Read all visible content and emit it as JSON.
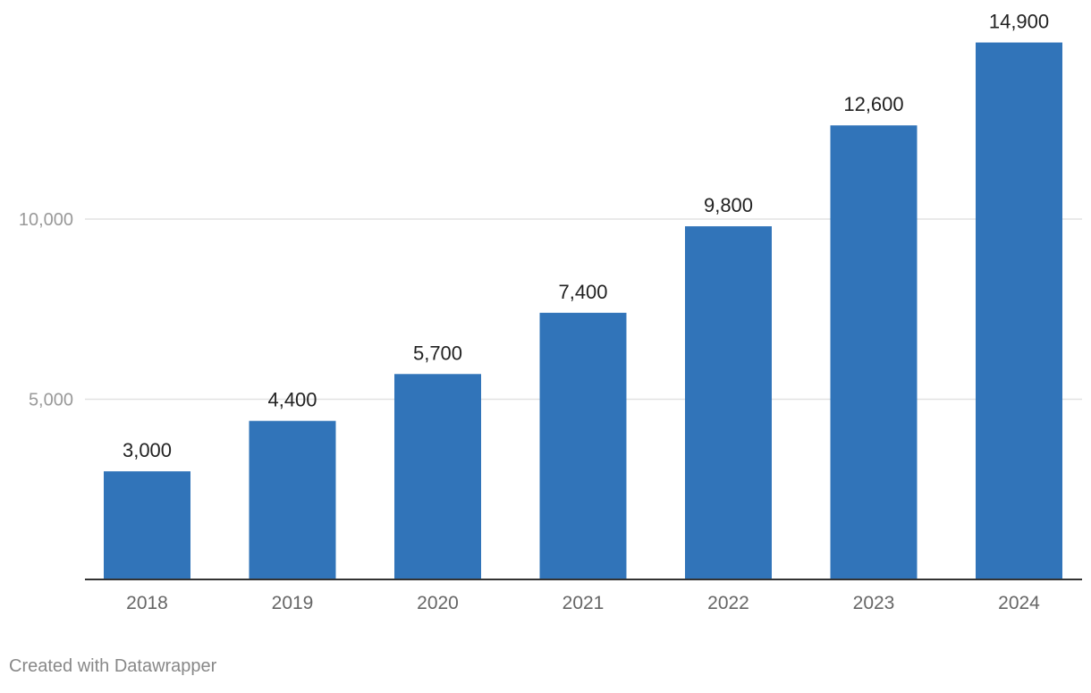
{
  "chart_data": {
    "type": "bar",
    "title": "",
    "xlabel": "",
    "ylabel": "",
    "categories": [
      "2018",
      "2019",
      "2020",
      "2021",
      "2022",
      "2023",
      "2024"
    ],
    "values": [
      3000,
      4400,
      5700,
      7400,
      9800,
      12600,
      14900
    ],
    "value_labels": [
      "3,000",
      "4,400",
      "5,700",
      "7,400",
      "9,800",
      "12,600",
      "14,900"
    ],
    "ylim": [
      0,
      15000
    ],
    "y_ticks": [
      5000,
      10000
    ],
    "y_tick_labels": [
      "5,000",
      "10,000"
    ],
    "grid": true,
    "legend": "none",
    "bar_color": "#3174b9"
  },
  "footer": {
    "credit": "Created with Datawrapper"
  }
}
